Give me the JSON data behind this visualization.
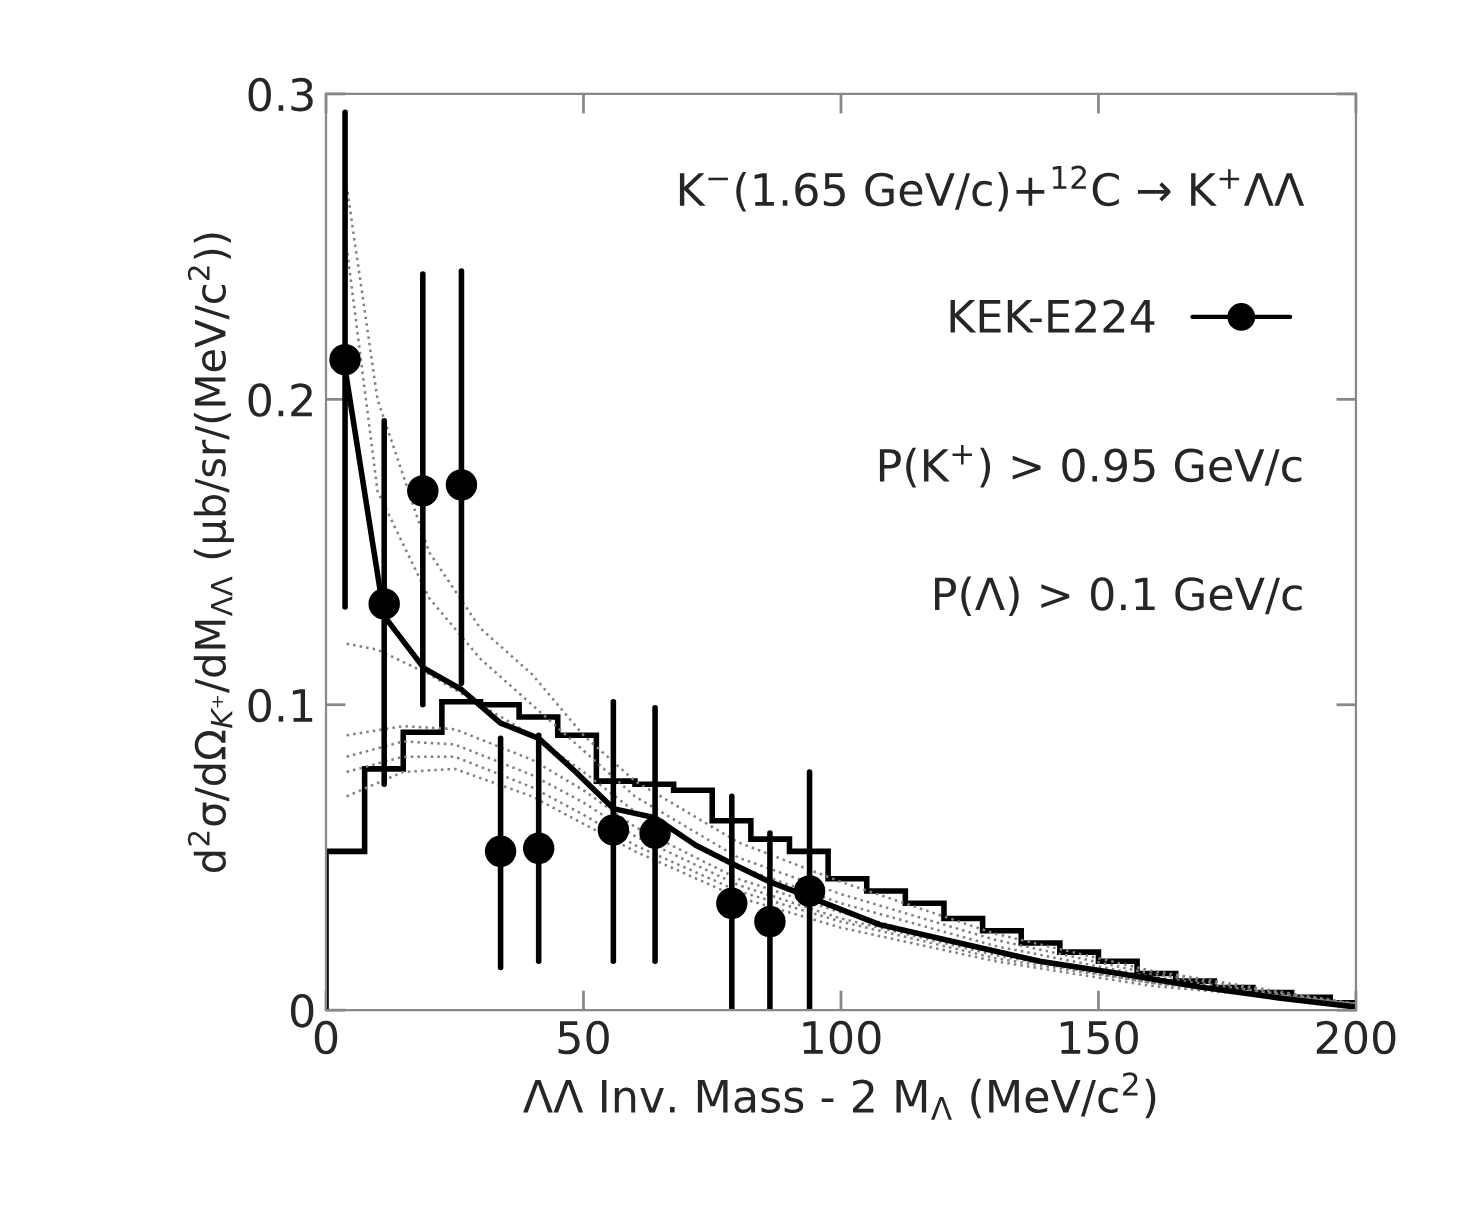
{
  "chart_data": {
    "type": "scatter",
    "xlabel": "ΛΛ Inv. Mass - 2 M$_{Λ}$ (MeV/c$^{2}$)",
    "ylabel": "d$^{2}$σ/dΩ$_{K⁺}$/dM$_{ΛΛ}$ (μb/sr/(MeV/c$^{2}$))",
    "annotations": [
      "K$^{−}$(1.65 GeV/c)+$^{12}$C → K$^{+}$ΛΛ",
      "P(K$^{+}$) > 0.95 GeV/c",
      "P(Λ) > 0.1 GeV/c"
    ],
    "xlim": [
      0,
      200
    ],
    "xticks": [
      0,
      50,
      100,
      150,
      200
    ],
    "ylim": [
      0,
      0.3
    ],
    "yticks": [
      0,
      0.1,
      0.2,
      0.3
    ],
    "grid": false,
    "legend": "top right",
    "series": [
      {
        "type": "histogram",
        "color": "#000000",
        "bins": [
          0,
          7.5,
          15,
          22.5,
          30,
          37.5,
          45,
          52.5,
          60,
          67.5,
          75,
          82.5,
          90,
          97.5,
          105,
          112.5,
          120,
          127.5,
          135,
          142.5,
          150,
          157.5,
          165,
          172.5,
          180,
          187.5,
          195,
          200
        ],
        "values": [
          0.052,
          0.079,
          0.091,
          0.101,
          0.1,
          0.096,
          0.09,
          0.075,
          0.074,
          0.072,
          0.062,
          0.056,
          0.052,
          0.043,
          0.039,
          0.035,
          0.03,
          0.026,
          0.022,
          0.019,
          0.016,
          0.012,
          0.0095,
          0.0074,
          0.0058,
          0.0042,
          0.0024
        ]
      },
      {
        "type": "line",
        "line_style": "dotted",
        "color": "#808080",
        "x": [
          4,
          10,
          20,
          30,
          40,
          50,
          60,
          80,
          100,
          130,
          160,
          200
        ],
        "values": [
          0.27,
          0.2,
          0.15,
          0.125,
          0.11,
          0.09,
          0.075,
          0.055,
          0.042,
          0.025,
          0.013,
          0.002
        ]
      },
      {
        "type": "line",
        "line_style": "dotted",
        "color": "#808080",
        "x": [
          4,
          10,
          20,
          30,
          40,
          50,
          60,
          80,
          100,
          130,
          160,
          200
        ],
        "values": [
          0.25,
          0.17,
          0.135,
          0.115,
          0.1,
          0.085,
          0.07,
          0.05,
          0.038,
          0.023,
          0.012,
          0.002
        ]
      },
      {
        "type": "line",
        "line_style": "dotted",
        "color": "#808080",
        "x": [
          4,
          10,
          20,
          30,
          40,
          50,
          60,
          80,
          100,
          130,
          160,
          200
        ],
        "values": [
          0.12,
          0.118,
          0.11,
          0.1,
          0.09,
          0.078,
          0.065,
          0.047,
          0.035,
          0.021,
          0.011,
          0.002
        ]
      },
      {
        "type": "line",
        "line_style": "dotted",
        "color": "#808080",
        "x": [
          4,
          15,
          25,
          40,
          50,
          60,
          80,
          100,
          130,
          160,
          200
        ],
        "values": [
          0.09,
          0.093,
          0.092,
          0.082,
          0.072,
          0.06,
          0.043,
          0.032,
          0.019,
          0.01,
          0.002
        ]
      },
      {
        "type": "line",
        "line_style": "dotted",
        "color": "#808080",
        "x": [
          4,
          15,
          25,
          40,
          50,
          60,
          80,
          100,
          130,
          160,
          200
        ],
        "values": [
          0.083,
          0.088,
          0.087,
          0.077,
          0.068,
          0.057,
          0.041,
          0.03,
          0.018,
          0.009,
          0.002
        ]
      },
      {
        "type": "line",
        "line_style": "dotted",
        "color": "#808080",
        "x": [
          4,
          15,
          25,
          40,
          50,
          60,
          80,
          100,
          130,
          160,
          200
        ],
        "values": [
          0.078,
          0.083,
          0.083,
          0.073,
          0.064,
          0.054,
          0.039,
          0.029,
          0.017,
          0.009,
          0.002
        ]
      },
      {
        "type": "line",
        "line_style": "dotted",
        "color": "#808080",
        "x": [
          4,
          15,
          25,
          40,
          50,
          60,
          80,
          100,
          130,
          160,
          200
        ],
        "values": [
          0.07,
          0.078,
          0.079,
          0.07,
          0.061,
          0.052,
          0.037,
          0.027,
          0.016,
          0.008,
          0.002
        ]
      },
      {
        "type": "line",
        "line_style": "solid",
        "color": "#000000",
        "x": [
          3.7,
          11.3,
          19,
          26.3,
          33.9,
          41.3,
          48.5,
          55.8,
          63.9,
          71.8,
          78.8,
          86.2,
          93.9,
          107.5,
          123,
          138.6,
          154,
          169.7,
          185,
          200
        ],
        "values": [
          0.21,
          0.129,
          0.112,
          0.105,
          0.094,
          0.089,
          0.078,
          0.066,
          0.063,
          0.054,
          0.048,
          0.042,
          0.037,
          0.028,
          0.022,
          0.016,
          0.012,
          0.0076,
          0.004,
          0.001
        ]
      },
      {
        "name": "KEK-E224",
        "marker": "circle",
        "color": "#000000",
        "x": [
          3.7,
          11.3,
          18.8,
          26.3,
          33.9,
          41.3,
          55.8,
          63.9,
          78.8,
          86.2,
          93.9
        ],
        "values": [
          0.213,
          0.133,
          0.17,
          0.172,
          0.052,
          0.053,
          0.059,
          0.058,
          0.035,
          0.029,
          0.039
        ],
        "errors": [
          [
            0.132,
            0.294
          ],
          [
            0.074,
            0.193
          ],
          [
            0.1,
            0.241
          ],
          [
            0.107,
            0.242
          ],
          [
            0.014,
            0.089
          ],
          [
            0.016,
            0.09
          ],
          [
            0.016,
            0.101
          ],
          [
            0.016,
            0.099
          ],
          [
            0,
            0.07
          ],
          [
            0,
            0.058
          ],
          [
            0,
            0.078
          ]
        ]
      }
    ]
  }
}
